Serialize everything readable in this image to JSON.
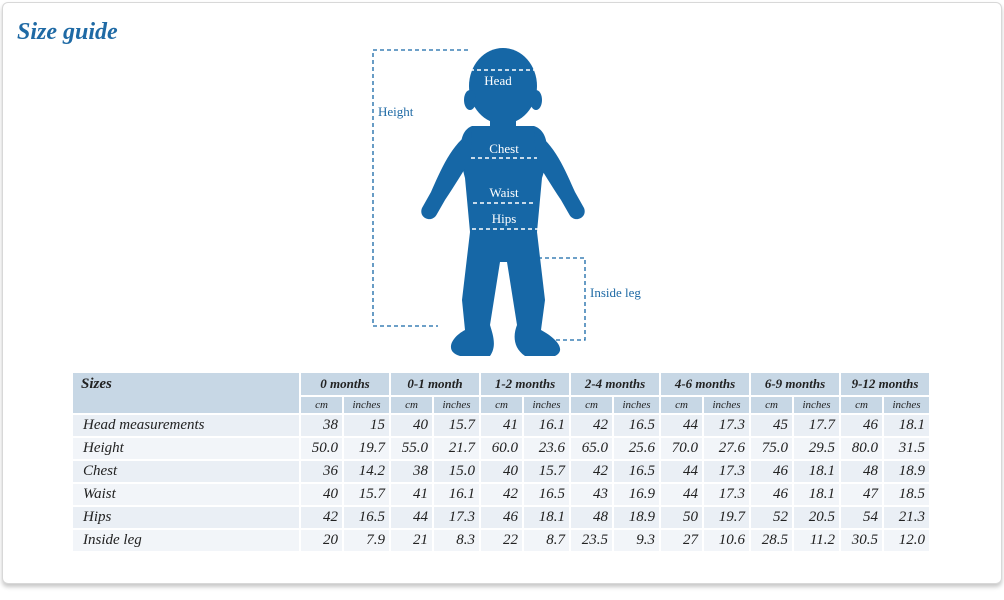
{
  "header": {
    "title": "Size guide"
  },
  "diagram": {
    "labels": {
      "head": "Head",
      "chest": "Chest",
      "waist": "Waist",
      "hips": "Hips",
      "height": "Height",
      "inside_leg": "Inside leg"
    }
  },
  "table": {
    "corner": "Sizes",
    "groups": [
      "0 months",
      "0-1 month",
      "1-2 months",
      "2-4 months",
      "4-6 months",
      "6-9 months",
      "9-12 months"
    ],
    "units": [
      "cm",
      "inches"
    ],
    "rows": [
      {
        "label": "Head measurements",
        "cells": [
          "38",
          "15",
          "40",
          "15.7",
          "41",
          "16.1",
          "42",
          "16.5",
          "44",
          "17.3",
          "45",
          "17.7",
          "46",
          "18.1"
        ]
      },
      {
        "label": "Height",
        "cells": [
          "50.0",
          "19.7",
          "55.0",
          "21.7",
          "60.0",
          "23.6",
          "65.0",
          "25.6",
          "70.0",
          "27.6",
          "75.0",
          "29.5",
          "80.0",
          "31.5"
        ]
      },
      {
        "label": "Chest",
        "cells": [
          "36",
          "14.2",
          "38",
          "15.0",
          "40",
          "15.7",
          "42",
          "16.5",
          "44",
          "17.3",
          "46",
          "18.1",
          "48",
          "18.9"
        ]
      },
      {
        "label": "Waist",
        "cells": [
          "40",
          "15.7",
          "41",
          "16.1",
          "42",
          "16.5",
          "43",
          "16.9",
          "44",
          "17.3",
          "46",
          "18.1",
          "47",
          "18.5"
        ]
      },
      {
        "label": "Hips",
        "cells": [
          "42",
          "16.5",
          "44",
          "17.3",
          "46",
          "18.1",
          "48",
          "18.9",
          "50",
          "19.7",
          "52",
          "20.5",
          "54",
          "21.3"
        ]
      },
      {
        "label": "Inside leg",
        "cells": [
          "20",
          "7.9",
          "21",
          "8.3",
          "22",
          "8.7",
          "23.5",
          "9.3",
          "27",
          "10.6",
          "28.5",
          "11.2",
          "30.5",
          "12.0"
        ]
      }
    ]
  }
}
